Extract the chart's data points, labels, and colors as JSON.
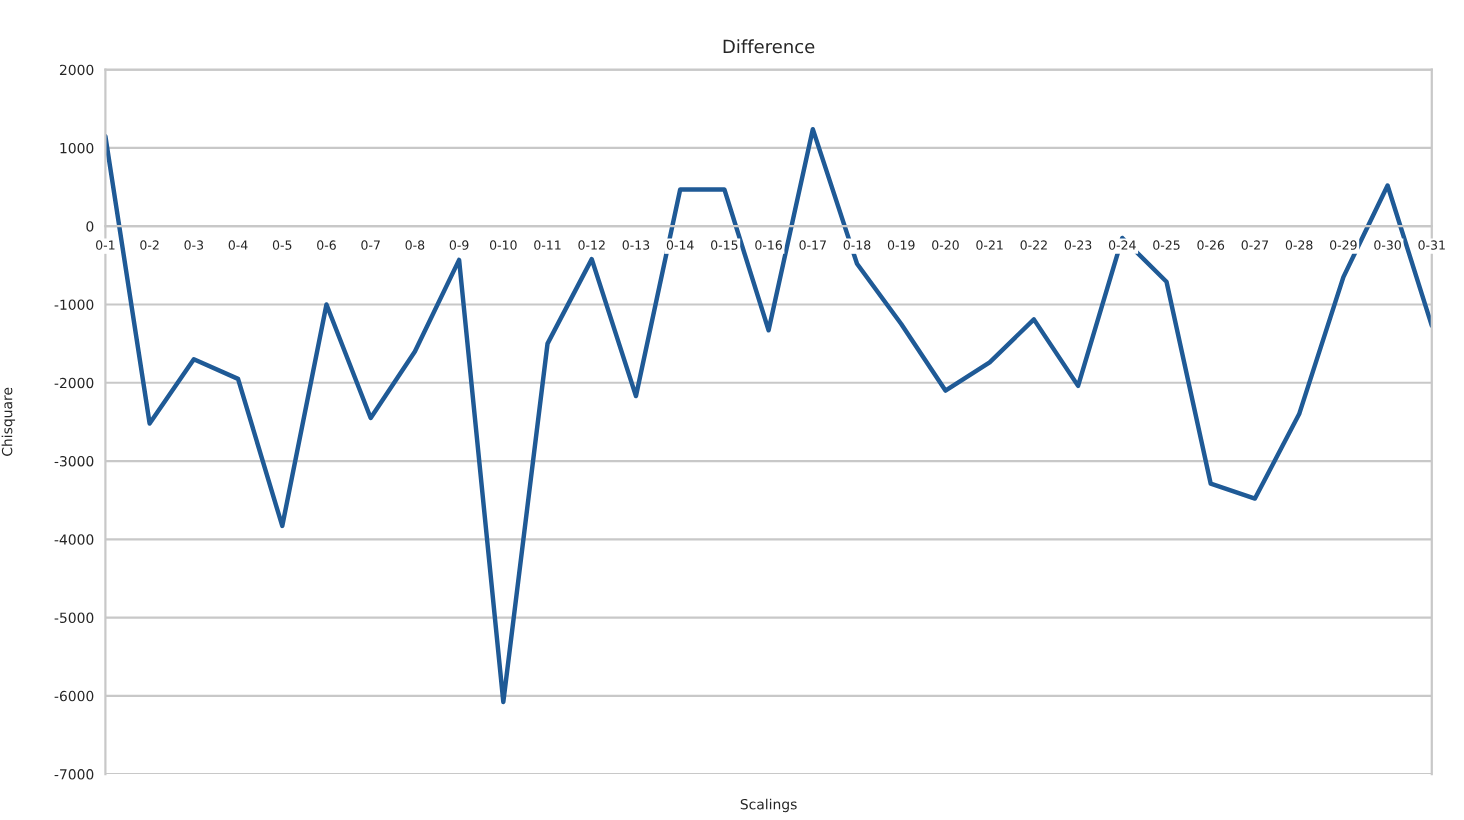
{
  "chart_data": {
    "type": "line",
    "title": "Difference",
    "xlabel": "Scalings",
    "ylabel": "Chisquare",
    "categories": [
      "0-1",
      "0-2",
      "0-3",
      "0-4",
      "0-5",
      "0-6",
      "0-7",
      "0-8",
      "0-9",
      "0-10",
      "0-11",
      "0-12",
      "0-13",
      "0-14",
      "0-15",
      "0-16",
      "0-17",
      "0-18",
      "0-19",
      "0-20",
      "0-21",
      "0-22",
      "0-23",
      "0-24",
      "0-25",
      "0-26",
      "0-27",
      "0-28",
      "0-29",
      "0-30",
      "0-31"
    ],
    "series": [
      {
        "color": "#1f5a96",
        "values": [
          1150,
          -2520,
          -1700,
          -1950,
          -3830,
          -1000,
          -2450,
          -1600,
          -430,
          -6080,
          -1500,
          -420,
          -2170,
          470,
          470,
          -1330,
          1240,
          -480,
          -1250,
          -2100,
          -1740,
          -1190,
          -2040,
          -150,
          -710,
          -3290,
          -3480,
          -2400,
          -650,
          520,
          -1270
        ]
      }
    ],
    "ylim": [
      -7000,
      2000
    ],
    "yticks": [
      -7000,
      -6000,
      -5000,
      -4000,
      -3000,
      -2000,
      -1000,
      0,
      1000,
      2000
    ],
    "grid": "y",
    "legend": false,
    "marker": "none",
    "line_style": "solid"
  }
}
